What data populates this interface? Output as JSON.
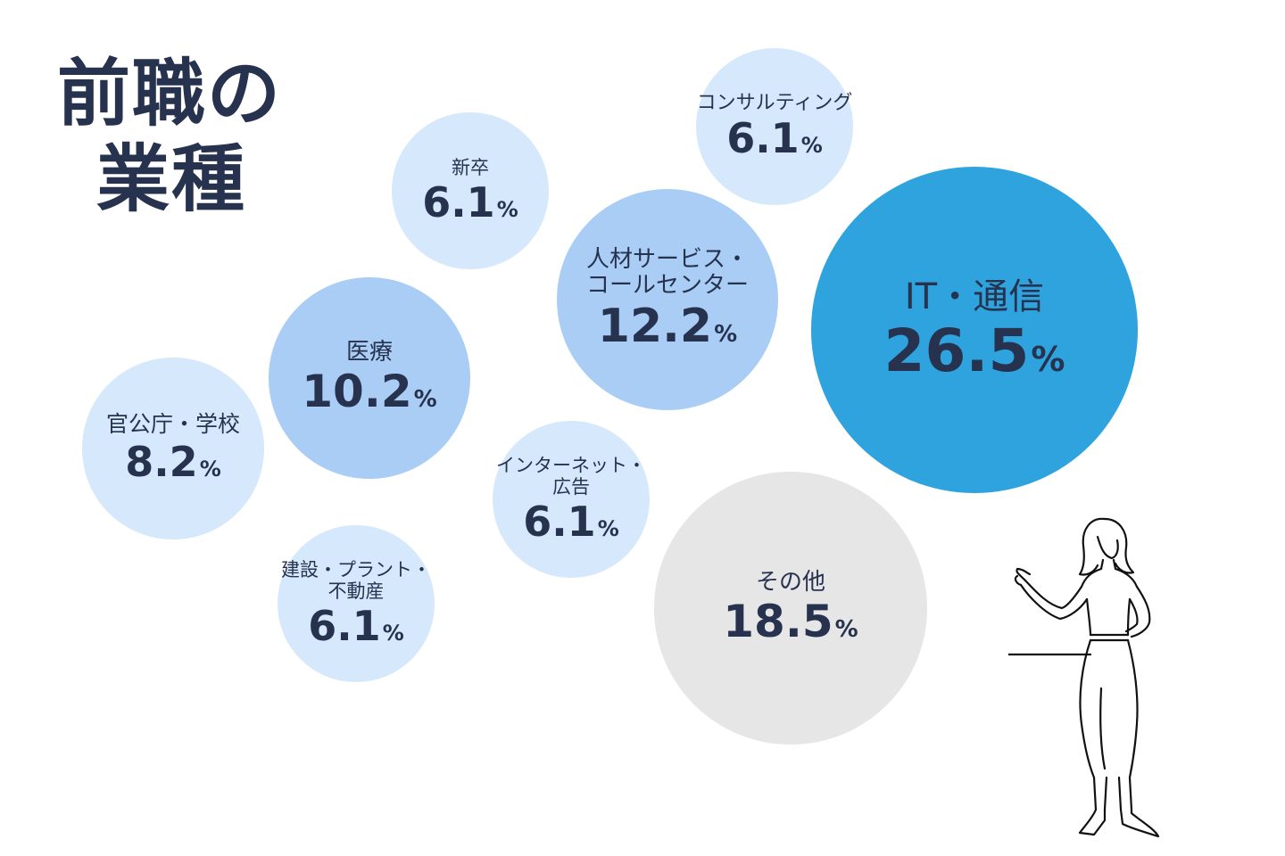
{
  "title": {
    "line1": "前職の",
    "line2": "業種"
  },
  "chart_data": {
    "type": "bubble",
    "title": "前職の業種",
    "unit": "%",
    "items": [
      {
        "id": "it",
        "label": "IT・通信",
        "value": 26.5,
        "color": "#2ea3dd"
      },
      {
        "id": "sonota",
        "label": "その他",
        "value": 18.5,
        "color": "#e6e6e6"
      },
      {
        "id": "jinzai",
        "label": "人材サービス・コールセンター",
        "value": 12.2,
        "color": "#a9cdf5"
      },
      {
        "id": "iryo",
        "label": "医療",
        "value": 10.2,
        "color": "#a9cdf5"
      },
      {
        "id": "kankocho",
        "label": "官公庁・学校",
        "value": 8.2,
        "color": "#d6e8fb"
      },
      {
        "id": "consulting",
        "label": "コンサルティング",
        "value": 6.1,
        "color": "#d6e8fb"
      },
      {
        "id": "shinsotsu",
        "label": "新卒",
        "value": 6.1,
        "color": "#d6e8fb"
      },
      {
        "id": "internet",
        "label": "インターネット・広告",
        "value": 6.1,
        "color": "#d6e8fb"
      },
      {
        "id": "kensetsu",
        "label": "建設・プラント・不動産",
        "value": 6.1,
        "color": "#d6e8fb"
      }
    ]
  },
  "display": {
    "it": {
      "label_lines": [
        "IT・通信"
      ],
      "value_text": "26.5"
    },
    "sonota": {
      "label_lines": [
        "その他"
      ],
      "value_text": "18.5"
    },
    "jinzai": {
      "label_lines": [
        "人材サービス・",
        "コールセンター"
      ],
      "value_text": "12.2"
    },
    "iryo": {
      "label_lines": [
        "医療"
      ],
      "value_text": "10.2"
    },
    "kankocho": {
      "label_lines": [
        "官公庁・学校"
      ],
      "value_text": "8.2"
    },
    "consulting": {
      "label_lines": [
        "コンサルティング"
      ],
      "value_text": "6.1"
    },
    "shinsotsu": {
      "label_lines": [
        "新卒"
      ],
      "value_text": "6.1"
    },
    "internet": {
      "label_lines": [
        "インターネット・",
        "広告"
      ],
      "value_text": "6.1"
    },
    "kensetsu": {
      "label_lines": [
        "建設・プラント・",
        "不動産"
      ],
      "value_text": "6.1"
    }
  },
  "pct_sign": "%",
  "illustration": {
    "icon": "woman-presenting-line-art-icon"
  }
}
